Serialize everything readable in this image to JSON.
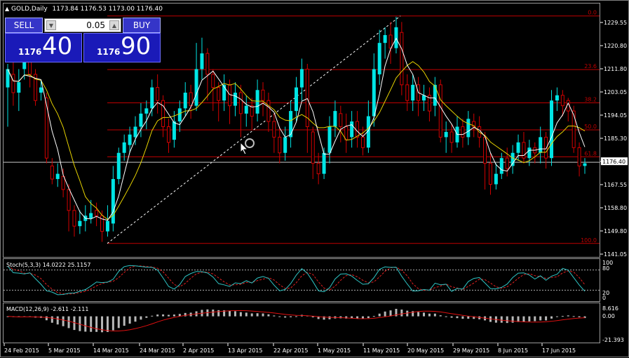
{
  "header": {
    "symbol": "GOLD,Daily",
    "ohlc": "1173.84 1176.53 1173.00 1176.40"
  },
  "trade_panel": {
    "sell_label": "SELL",
    "buy_label": "BUY",
    "lot": "0.05",
    "sell_price_small": "1176",
    "sell_price_big": "40",
    "buy_price_small": "1176",
    "buy_price_big": "90"
  },
  "price_axis": [
    "1229.55",
    "1220.80",
    "1211.80",
    "1203.05",
    "1194.05",
    "1185.30",
    "1176.40",
    "1167.55",
    "1158.80",
    "1149.80",
    "1141.05"
  ],
  "current_price": "1176.40",
  "fibo_levels": [
    {
      "label": "0.0",
      "price": 1232.3
    },
    {
      "label": "23.6",
      "price": 1211.8
    },
    {
      "label": "38.2",
      "price": 1199.1
    },
    {
      "label": "50.0",
      "price": 1188.8
    },
    {
      "label": "61.8",
      "price": 1178.5
    },
    {
      "label": "100.0",
      "price": 1145.4
    }
  ],
  "date_axis": [
    "24 Feb 2015",
    "5 Mar 2015",
    "14 Mar 2015",
    "24 Mar 2015",
    "2 Apr 2015",
    "13 Apr 2015",
    "22 Apr 2015",
    "1 May 2015",
    "11 May 2015",
    "20 May 2015",
    "29 May 2015",
    "8 Jun 2015",
    "17 Jun 2015"
  ],
  "stoch": {
    "label": "Stoch(5,3,3) 14.0222 25.1157",
    "levels": [
      "100",
      "80",
      "20",
      "0"
    ]
  },
  "macd": {
    "label": "MACD(12,26,9) -2.611 -2.111",
    "levels": [
      "8.616",
      "0.00",
      "-21.393"
    ]
  },
  "colors": {
    "bull": "#00e5e5",
    "bear": "#d40000",
    "fibo": "#c00000",
    "ma_fast": "#ffffff",
    "ma_slow": "#e6d200",
    "stoch_main": "#2ec4c4",
    "stoch_signal": "#e02020",
    "macd_hist": "#b8b8b8",
    "macd_signal": "#e01010"
  }
}
